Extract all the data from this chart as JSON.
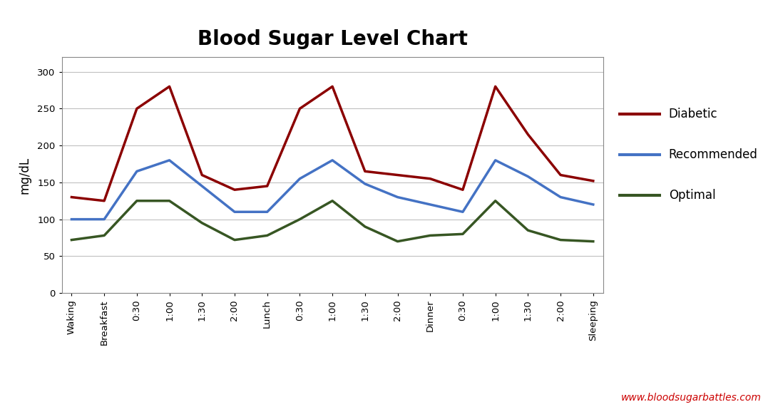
{
  "title": "Blood Sugar Level Chart",
  "title_fontsize": 20,
  "title_fontweight": "bold",
  "ylabel": "mg/dL",
  "ylabel_fontsize": 12,
  "background_color": "#ffffff",
  "plot_bg_color": "#ffffff",
  "xlabels": [
    "Waking",
    "Breakfast",
    "0:30",
    "1:00",
    "1:30",
    "2:00",
    "Lunch",
    "0:30",
    "1:00",
    "1:30",
    "2:00",
    "Dinner",
    "0:30",
    "1:00",
    "1:30",
    "2:00",
    "Sleeping"
  ],
  "diabetic": [
    130,
    125,
    250,
    280,
    160,
    140,
    145,
    250,
    280,
    165,
    160,
    155,
    140,
    280,
    215,
    160,
    152
  ],
  "recommended": [
    100,
    100,
    165,
    180,
    145,
    110,
    110,
    155,
    180,
    148,
    130,
    120,
    110,
    180,
    158,
    130,
    120
  ],
  "optimal": [
    72,
    78,
    125,
    125,
    95,
    72,
    78,
    100,
    125,
    90,
    70,
    78,
    80,
    125,
    85,
    72,
    70
  ],
  "diabetic_color": "#8B0000",
  "recommended_color": "#4472C4",
  "optimal_color": "#375623",
  "line_width": 2.5,
  "ylim": [
    0,
    320
  ],
  "yticks": [
    0,
    50,
    100,
    150,
    200,
    250,
    300
  ],
  "grid_color": "#c0c0c0",
  "grid_linewidth": 0.8,
  "legend_labels": [
    "Diabetic",
    "Recommended",
    "Optimal"
  ],
  "watermark": "www.bloodsugarbattles.com",
  "watermark_color": "#cc0000",
  "watermark_fontsize": 10
}
